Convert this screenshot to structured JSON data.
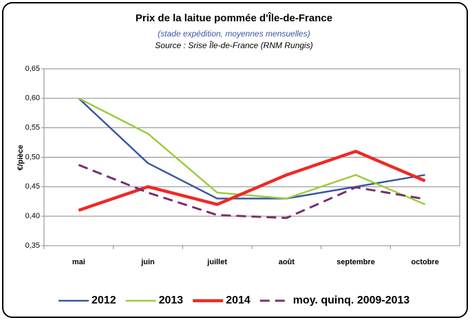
{
  "chart_data": {
    "type": "line",
    "title": "Prix de la laitue pommée d'Île-de-France",
    "subtitle": "(stade expédition, moyennes mensuelles)",
    "source": "Source : Srise Île-de-France (RNM Rungis)",
    "y_label": "€/pièce",
    "categories": [
      "mai",
      "juin",
      "juillet",
      "août",
      "septembre",
      "octobre"
    ],
    "series": [
      {
        "name": "2012",
        "color": "#3a56a5",
        "line_width": 2.5,
        "dashed": false,
        "values": [
          0.6,
          0.49,
          0.43,
          0.43,
          0.45,
          0.47
        ]
      },
      {
        "name": "2013",
        "color": "#9acd3c",
        "line_width": 2.5,
        "dashed": false,
        "values": [
          0.6,
          0.54,
          0.44,
          0.43,
          0.47,
          0.42
        ]
      },
      {
        "name": "2014",
        "color": "#ee2a24",
        "line_width": 4.5,
        "dashed": false,
        "values": [
          0.41,
          0.45,
          0.42,
          0.47,
          0.51,
          0.46
        ]
      },
      {
        "name": "moy. quinq. 2009-2013",
        "color": "#7b2c6f",
        "line_width": 3,
        "dashed": true,
        "values": [
          0.487,
          0.44,
          0.402,
          0.397,
          0.449,
          0.429
        ]
      }
    ],
    "ylim": [
      0.35,
      0.65
    ],
    "yticks": [
      {
        "value": 0.35,
        "label": "0,35"
      },
      {
        "value": 0.4,
        "label": "0,40"
      },
      {
        "value": 0.45,
        "label": "0,45"
      },
      {
        "value": 0.5,
        "label": "0,50"
      },
      {
        "value": 0.55,
        "label": "0,55"
      },
      {
        "value": 0.6,
        "label": "0,60"
      },
      {
        "value": 0.65,
        "label": "0,65"
      }
    ],
    "grid": true,
    "legend": "bottom"
  }
}
